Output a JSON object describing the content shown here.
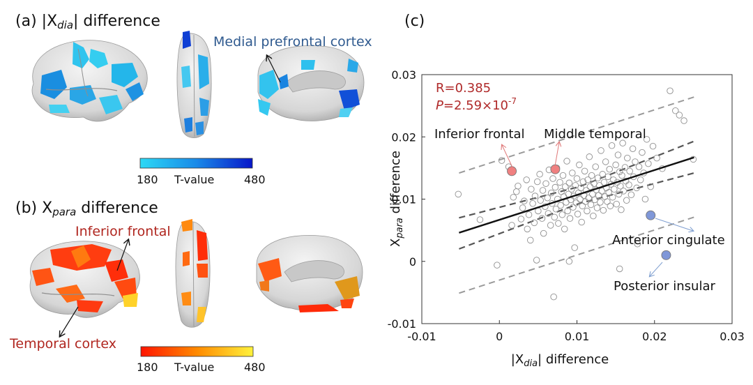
{
  "panel_a": {
    "label": "(a)",
    "title_prefix": "|X",
    "title_subscript": "dia",
    "title_suffix": "| difference",
    "annotation": "Medial prefrontal cortex",
    "colorbar": {
      "min_label": "180",
      "mid_label": "T-value",
      "max_label": "480",
      "color_low": "#29d3f2",
      "color_high": "#0a1fd0"
    }
  },
  "panel_b": {
    "label": "(b)",
    "title_prefix": "X",
    "title_subscript": "para",
    "title_suffix": " difference",
    "annotation_top": "Inferior frontal",
    "annotation_bottom": "Temporal cortex",
    "colorbar": {
      "min_label": "180",
      "mid_label": "T-value",
      "max_label": "480",
      "color_low": "#ff1a00",
      "color_high": "#ffef3a"
    }
  },
  "panel_c": {
    "label": "(c)",
    "stats_r": "R=0.385",
    "stats_p_italic": "P",
    "stats_p_value": "=2.59×10",
    "stats_p_exponent": "-7"
  },
  "chart_data": {
    "type": "scatter",
    "xlabel_prefix": "|X",
    "xlabel_subscript": "dia",
    "xlabel_suffix": "| difference",
    "ylabel_prefix": "X",
    "ylabel_subscript": "para",
    "ylabel_suffix": " difference",
    "xlim": [
      -0.01,
      0.03
    ],
    "ylim": [
      -0.01,
      0.03
    ],
    "xticks": [
      -0.01,
      0,
      0.01,
      0.02,
      0.03
    ],
    "xtick_labels": [
      "-0.01",
      "0",
      "0.01",
      "0.02",
      "0.03"
    ],
    "yticks": [
      -0.01,
      0,
      0.01,
      0.02,
      0.03
    ],
    "ytick_labels": [
      "-0.01",
      "0",
      "0.01",
      "0.02",
      "0.03"
    ],
    "fit_line": {
      "x": [
        -0.0052,
        0.0251
      ],
      "y": [
        0.0046,
        0.0167
      ]
    },
    "ci_upper": {
      "x": [
        -0.0052,
        0.0103,
        0.0251
      ],
      "y": [
        0.007,
        0.012,
        0.0193
      ]
    },
    "ci_lower": {
      "x": [
        -0.0052,
        0.0103,
        0.0251
      ],
      "y": [
        0.002,
        0.0093,
        0.0142
      ]
    },
    "pi_upper": {
      "x": [
        -0.0052,
        0.0251
      ],
      "y": [
        0.0142,
        0.0264
      ]
    },
    "pi_lower": {
      "x": [
        -0.0052,
        0.0251
      ],
      "y": [
        -0.0051,
        0.0071
      ]
    },
    "points": [
      [
        -0.0053,
        0.0108
      ],
      [
        -0.0025,
        0.0067
      ],
      [
        -0.0003,
        -0.0006
      ],
      [
        0.0003,
        0.0162
      ],
      [
        0.0012,
        0.0152
      ],
      [
        0.0016,
        0.0058
      ],
      [
        0.0018,
        0.0103
      ],
      [
        0.0022,
        0.0112
      ],
      [
        0.0024,
        0.0121
      ],
      [
        0.0028,
        0.0068
      ],
      [
        0.003,
        0.0086
      ],
      [
        0.0032,
        0.0097
      ],
      [
        0.0035,
        0.0131
      ],
      [
        0.0036,
        0.0052
      ],
      [
        0.0038,
        0.0075
      ],
      [
        0.004,
        0.0034
      ],
      [
        0.0041,
        0.0116
      ],
      [
        0.0043,
        0.0093
      ],
      [
        0.0045,
        0.0062
      ],
      [
        0.0046,
        0.0105
      ],
      [
        0.0048,
        0.0002
      ],
      [
        0.0049,
        0.0128
      ],
      [
        0.005,
        0.0081
      ],
      [
        0.0052,
        0.014
      ],
      [
        0.0053,
        0.0098
      ],
      [
        0.0055,
        0.0069
      ],
      [
        0.0056,
        0.0114
      ],
      [
        0.0057,
        0.0045
      ],
      [
        0.0059,
        0.0088
      ],
      [
        0.006,
        0.0125
      ],
      [
        0.0062,
        0.0102
      ],
      [
        0.0063,
        0.0077
      ],
      [
        0.0064,
        0.0147
      ],
      [
        0.0066,
        0.0058
      ],
      [
        0.0067,
        0.011
      ],
      [
        0.0068,
        0.0093
      ],
      [
        0.0069,
        0.0133
      ],
      [
        0.0071,
        0.0071
      ],
      [
        0.0072,
        0.0119
      ],
      [
        0.0073,
        0.0084
      ],
      [
        0.0074,
        0.015
      ],
      [
        0.0075,
        0.01
      ],
      [
        0.0076,
        0.0061
      ],
      [
        0.0078,
        0.0127
      ],
      [
        0.0079,
        0.009
      ],
      [
        0.008,
        0.0112
      ],
      [
        0.0081,
        0.0075
      ],
      [
        0.0082,
        0.0138
      ],
      [
        0.0083,
        0.0104
      ],
      [
        0.0084,
        0.0052
      ],
      [
        0.0085,
        0.012
      ],
      [
        0.0086,
        0.0095
      ],
      [
        0.0087,
        0.0161
      ],
      [
        0.0088,
        0.0081
      ],
      [
        0.0089,
        0.0108
      ],
      [
        0.009,
        0.0126
      ],
      [
        0.0091,
        0.0069
      ],
      [
        0.0092,
        0.0099
      ],
      [
        0.0093,
        0.0116
      ],
      [
        0.0094,
        0.0142
      ],
      [
        0.0095,
        0.0087
      ],
      [
        0.0096,
        0.0105
      ],
      [
        0.0097,
        0.0022
      ],
      [
        0.0098,
        0.0122
      ],
      [
        0.0099,
        0.0094
      ],
      [
        0.01,
        0.0133
      ],
      [
        0.0101,
        0.0076
      ],
      [
        0.0102,
        0.011
      ],
      [
        0.0103,
        0.0155
      ],
      [
        0.0104,
        0.01
      ],
      [
        0.0105,
        0.0118
      ],
      [
        0.0106,
        0.0063
      ],
      [
        0.0107,
        0.0089
      ],
      [
        0.0108,
        0.0128
      ],
      [
        0.0109,
        0.0106
      ],
      [
        0.011,
        0.0145
      ],
      [
        0.0111,
        0.0096
      ],
      [
        0.0112,
        0.0114
      ],
      [
        0.0113,
        0.0081
      ],
      [
        0.0114,
        0.0131
      ],
      [
        0.0115,
        0.0102
      ],
      [
        0.0116,
        0.0168
      ],
      [
        0.0117,
        0.012
      ],
      [
        0.0118,
        0.0091
      ],
      [
        0.0119,
        0.0138
      ],
      [
        0.012,
        0.0108
      ],
      [
        0.0121,
        0.0073
      ],
      [
        0.0122,
        0.0125
      ],
      [
        0.0123,
        0.0099
      ],
      [
        0.0124,
        0.0152
      ],
      [
        0.0125,
        0.0115
      ],
      [
        0.0126,
        0.0086
      ],
      [
        0.0127,
        0.0134
      ],
      [
        0.0128,
        0.0106
      ],
      [
        0.0129,
        0.0122
      ],
      [
        0.013,
        0.0095
      ],
      [
        0.0131,
        0.0178
      ],
      [
        0.0132,
        0.0113
      ],
      [
        0.0133,
        0.014
      ],
      [
        0.0134,
        0.0082
      ],
      [
        0.0135,
        0.0127
      ],
      [
        0.0136,
        0.0104
      ],
      [
        0.0137,
        0.016
      ],
      [
        0.0138,
        0.0118
      ],
      [
        0.0139,
        0.0096
      ],
      [
        0.014,
        0.0136
      ],
      [
        0.0141,
        0.0111
      ],
      [
        0.0142,
        0.0148
      ],
      [
        0.0143,
        0.0089
      ],
      [
        0.0144,
        0.0124
      ],
      [
        0.0145,
        0.0186
      ],
      [
        0.0146,
        0.0103
      ],
      [
        0.0147,
        0.0131
      ],
      [
        0.0148,
        0.0116
      ],
      [
        0.015,
        0.0155
      ],
      [
        0.0151,
        0.0092
      ],
      [
        0.0152,
        0.0127
      ],
      [
        0.0153,
        0.0171
      ],
      [
        0.0154,
        0.0108
      ],
      [
        0.0155,
        0.0144
      ],
      [
        0.0156,
        0.0121
      ],
      [
        0.0157,
        0.0083
      ],
      [
        0.0158,
        0.0138
      ],
      [
        0.0159,
        0.019
      ],
      [
        0.016,
        0.0113
      ],
      [
        0.0162,
        0.0151
      ],
      [
        0.0163,
        0.0129
      ],
      [
        0.0164,
        0.0098
      ],
      [
        0.0165,
        0.0166
      ],
      [
        0.0167,
        0.0123
      ],
      [
        0.0168,
        0.0145
      ],
      [
        0.017,
        0.0107
      ],
      [
        0.0172,
        0.0181
      ],
      [
        0.0173,
        0.0136
      ],
      [
        0.0175,
        0.016
      ],
      [
        0.0177,
        0.0118
      ],
      [
        0.0178,
        0.0028
      ],
      [
        0.018,
        0.0152
      ],
      [
        0.0182,
        0.0131
      ],
      [
        0.0184,
        0.0175
      ],
      [
        0.0186,
        0.0142
      ],
      [
        0.0188,
        0.01
      ],
      [
        0.019,
        0.0196
      ],
      [
        0.0192,
        0.0157
      ],
      [
        0.0195,
        0.012
      ],
      [
        0.0198,
        0.0185
      ],
      [
        0.0203,
        0.0166
      ],
      [
        0.021,
        0.0149
      ],
      [
        0.022,
        0.0274
      ],
      [
        0.0227,
        0.0242
      ],
      [
        0.0232,
        0.0235
      ],
      [
        0.0238,
        0.0226
      ],
      [
        0.025,
        0.0164
      ],
      [
        0.007,
        -0.0057
      ],
      [
        0.0155,
        -0.0012
      ],
      [
        0.009,
        0.0
      ]
    ],
    "highlight_points": [
      {
        "label": "Inferior frontal",
        "x": 0.0016,
        "y": 0.0145,
        "color": "#f08080"
      },
      {
        "label": "Middle temporal",
        "x": 0.0072,
        "y": 0.0148,
        "color": "#f08080"
      },
      {
        "label": "Anterior cingulate",
        "x": 0.0195,
        "y": 0.0074,
        "color": "#7f97d8"
      },
      {
        "label": "Posterior insular",
        "x": 0.0215,
        "y": 0.001,
        "color": "#7f97d8"
      }
    ],
    "stats_color": "#b02a2a"
  }
}
